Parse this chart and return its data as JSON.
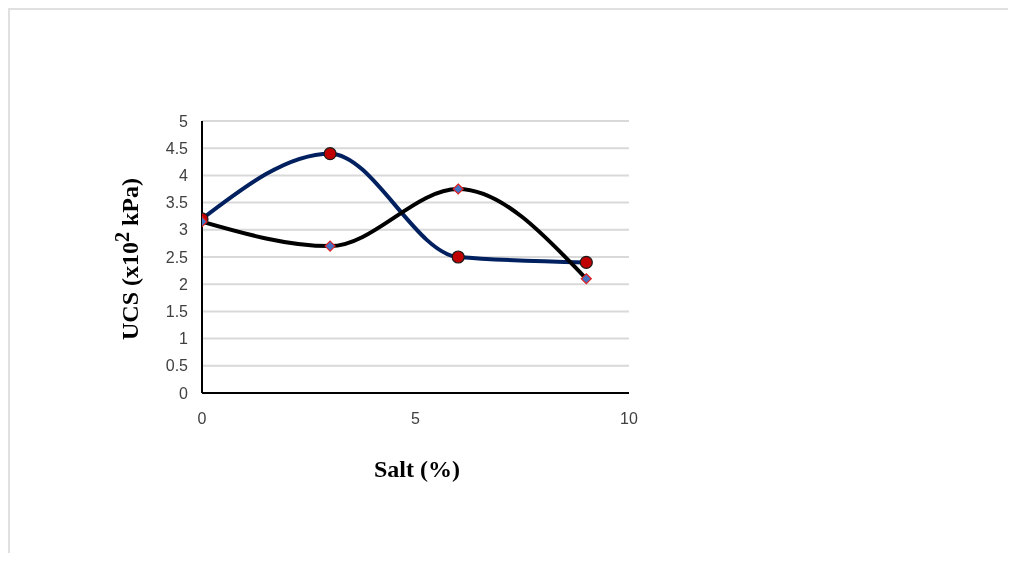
{
  "chart_data": {
    "type": "line",
    "xlabel": "Salt (%)",
    "ylabel": "UCS (x10$^{2}$ kPa)",
    "x": [
      0,
      3,
      6,
      9
    ],
    "series": [
      {
        "color": "#002060",
        "marker": "circle",
        "values": [
          3.2,
          4.4,
          2.5,
          2.4
        ]
      },
      {
        "color": "#000000",
        "marker": "diamond",
        "values": [
          3.15,
          2.7,
          3.75,
          2.1
        ]
      }
    ],
    "xlim": [
      0,
      10
    ],
    "xticks": [
      0,
      5,
      10
    ],
    "ylim": [
      0,
      5
    ],
    "yticks": [
      0,
      0.5,
      1,
      1.5,
      2,
      2.5,
      3,
      3.5,
      4,
      4.5,
      5
    ],
    "grid": "y",
    "legend": false
  }
}
